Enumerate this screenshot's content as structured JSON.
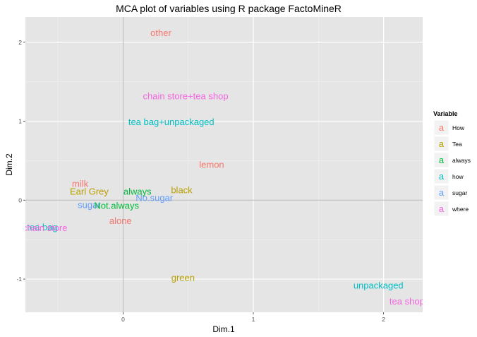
{
  "chart_data": {
    "type": "scatter",
    "title": "MCA plot of variables using R package FactoMineR",
    "xlabel": "Dim.1",
    "ylabel": "Dim.2",
    "xlim": [
      -0.75,
      2.3
    ],
    "ylim": [
      -1.42,
      2.32
    ],
    "x_ticks": [
      0,
      1,
      2
    ],
    "y_ticks": [
      -1,
      0,
      1,
      2
    ],
    "grid": true,
    "reference_lines": {
      "x": 0,
      "y": 0
    },
    "legend": {
      "title": "Variable",
      "position": "right",
      "key_glyph": "a",
      "entries": [
        {
          "name": "How",
          "color": "#F8766D"
        },
        {
          "name": "Tea",
          "color": "#B79F00"
        },
        {
          "name": "always",
          "color": "#00BA38"
        },
        {
          "name": "how",
          "color": "#00BFC4"
        },
        {
          "name": "sugar",
          "color": "#619CFF"
        },
        {
          "name": "where",
          "color": "#F564E3"
        }
      ]
    },
    "points": [
      {
        "label": "other",
        "x": 0.29,
        "y": 2.12,
        "group": "How"
      },
      {
        "label": "chain store+tea shop",
        "x": 0.48,
        "y": 1.32,
        "group": "where"
      },
      {
        "label": "tea bag+unpackaged",
        "x": 0.37,
        "y": 0.99,
        "group": "how"
      },
      {
        "label": "lemon",
        "x": 0.68,
        "y": 0.45,
        "group": "How"
      },
      {
        "label": "milk",
        "x": -0.33,
        "y": 0.21,
        "group": "How"
      },
      {
        "label": "Earl Grey",
        "x": -0.26,
        "y": 0.11,
        "group": "Tea"
      },
      {
        "label": "always",
        "x": 0.11,
        "y": 0.11,
        "group": "always"
      },
      {
        "label": "black",
        "x": 0.45,
        "y": 0.13,
        "group": "Tea"
      },
      {
        "label": "No.sugar",
        "x": 0.24,
        "y": 0.03,
        "group": "sugar"
      },
      {
        "label": "sugar",
        "x": -0.26,
        "y": -0.06,
        "group": "sugar"
      },
      {
        "label": "Not.always",
        "x": -0.05,
        "y": -0.07,
        "group": "always"
      },
      {
        "label": "alone",
        "x": -0.02,
        "y": -0.26,
        "group": "How"
      },
      {
        "label": "tea bag",
        "x": -0.62,
        "y": -0.34,
        "group": "how"
      },
      {
        "label": "chain store",
        "x": -0.6,
        "y": -0.35,
        "group": "where"
      },
      {
        "label": "green",
        "x": 0.46,
        "y": -0.98,
        "group": "Tea"
      },
      {
        "label": "unpackaged",
        "x": 1.96,
        "y": -1.08,
        "group": "how"
      },
      {
        "label": "tea shop",
        "x": 2.18,
        "y": -1.28,
        "group": "where"
      }
    ]
  }
}
